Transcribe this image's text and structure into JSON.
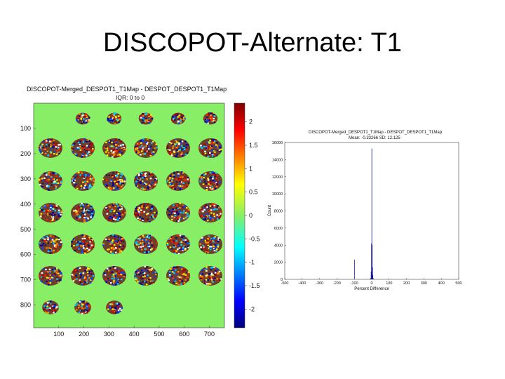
{
  "slide": {
    "title": "DISCOPOT-Alternate: T1"
  },
  "map": {
    "title": "DISCOPOT-Merged_DESPOT1_T1Map - DESPOT_DESPOT1_T1Map",
    "subtitle": "IQR: 0 to 0",
    "x_ticks": [
      "100",
      "200",
      "300",
      "400",
      "500",
      "600",
      "700"
    ],
    "y_ticks": [
      "100",
      "200",
      "300",
      "400",
      "500",
      "600",
      "700",
      "800"
    ],
    "background_color": "#88ee66",
    "slice_rows": [
      5,
      6,
      6,
      6,
      6,
      6,
      3
    ]
  },
  "colorbar": {
    "tick_labels": [
      "2",
      "1.5",
      "1",
      "0.5",
      "0",
      "-0.5",
      "-1",
      "-1.5",
      "-2"
    ],
    "colormap": "jet",
    "range": [
      -2.4,
      2.4
    ]
  },
  "chart_data": {
    "type": "histogram",
    "title": "DISCOPOT-Merged_DESPOT1_T1Map - DESPOT_DESPOT1_T1Map",
    "subtitle": "Mean: -0.33266 SD: 12.125",
    "xlabel": "Percent Difference",
    "ylabel": "Count",
    "xlim": [
      -500,
      500
    ],
    "ylim": [
      0,
      16000
    ],
    "x_ticks": [
      "-500",
      "-400",
      "-300",
      "-200",
      "-100",
      "0",
      "100",
      "200",
      "300",
      "400",
      "500"
    ],
    "y_ticks": [
      "0",
      "2000",
      "4000",
      "6000",
      "8000",
      "10000",
      "12000",
      "14000",
      "16000"
    ],
    "bars": [
      {
        "x": -100,
        "y": 2300
      },
      {
        "x": -8,
        "y": 150
      },
      {
        "x": -4,
        "y": 900
      },
      {
        "x": -2,
        "y": 4200
      },
      {
        "x": 0,
        "y": 15300
      },
      {
        "x": 2,
        "y": 4000
      },
      {
        "x": 4,
        "y": 1400
      },
      {
        "x": 6,
        "y": 500
      },
      {
        "x": 8,
        "y": 150
      }
    ],
    "bar_color": "#1a1aa0"
  }
}
